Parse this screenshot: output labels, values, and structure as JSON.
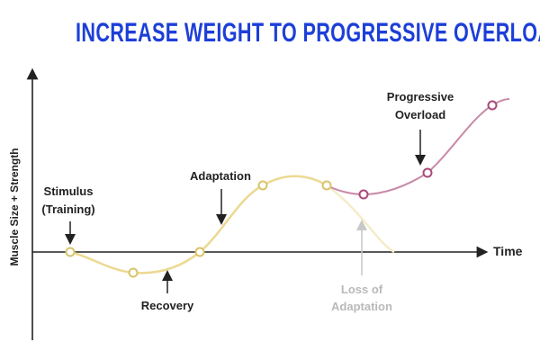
{
  "title": "INCREASE WEIGHT TO PROGRESSIVE OVERLOAD",
  "axes": {
    "y_label": "Muscle Size + Strength",
    "x_label": "Time"
  },
  "labels": {
    "stimulus_line1": "Stimulus",
    "stimulus_line2": "(Training)",
    "recovery": "Recovery",
    "adaptation": "Adaptation",
    "loss_line1": "Loss of",
    "loss_line2": "Adaptation",
    "overload_line1": "Progressive",
    "overload_line2": "Overload"
  },
  "colors": {
    "title": "#1d3fd8",
    "axis": "#222222",
    "adaptation_curve": "#ecd991",
    "loss_curve": "#f4ecc7",
    "overload_curve": "#c98aa8",
    "adaptation_marker": "#d8c46a",
    "overload_marker": "#a84a7c",
    "faint_text": "#b9b9b9"
  }
}
